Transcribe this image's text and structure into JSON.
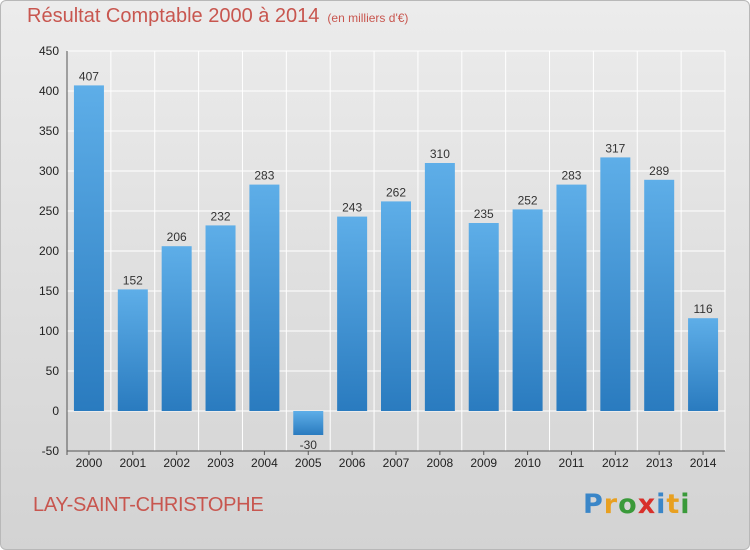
{
  "title": "Résultat Comptable 2000 à 2014",
  "unit_note": "(en milliers d'€)",
  "commune": "LAY-SAINT-CHRISTOPHE",
  "logo": {
    "letters": [
      "P",
      "r",
      "o",
      "x",
      "i",
      "t",
      "i"
    ],
    "colors": [
      "#3a86c8",
      "#e8a020",
      "#3a9a3a",
      "#d8302a",
      "#3a86c8",
      "#e8a020",
      "#3a9a3a"
    ]
  },
  "colors": {
    "bar_light": "#5eaee8",
    "bar_dark": "#2a7bbf",
    "title": "#c8564f"
  },
  "chart_data": {
    "type": "bar",
    "categories": [
      "2000",
      "2001",
      "2002",
      "2003",
      "2004",
      "2005",
      "2006",
      "2007",
      "2008",
      "2009",
      "2010",
      "2011",
      "2012",
      "2013",
      "2014"
    ],
    "values": [
      407,
      152,
      206,
      232,
      283,
      -30,
      243,
      262,
      310,
      235,
      252,
      283,
      317,
      289,
      116
    ],
    "ylim": [
      -50,
      450
    ],
    "yticks": [
      -50,
      0,
      50,
      100,
      150,
      200,
      250,
      300,
      350,
      400,
      450
    ],
    "grid": true
  }
}
